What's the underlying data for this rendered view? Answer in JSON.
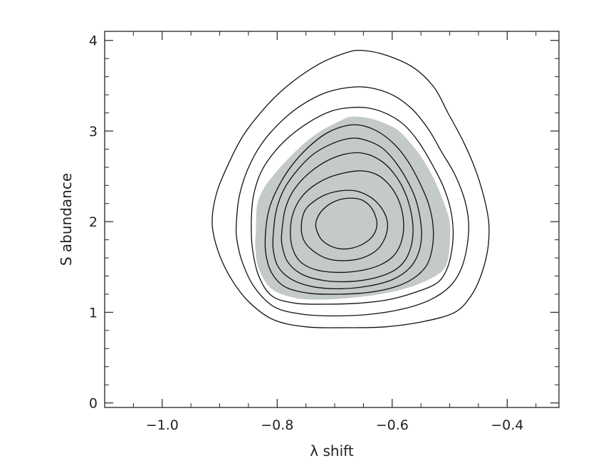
{
  "chart_data": {
    "type": "contour",
    "xlabel": "λ shift",
    "ylabel": "S abundance",
    "xlim": [
      -1.1,
      -0.31
    ],
    "ylim": [
      -0.05,
      4.1
    ],
    "xticks": [
      {
        "value": -1.0,
        "label": "−1.0"
      },
      {
        "value": -0.8,
        "label": "−0.8"
      },
      {
        "value": -0.6,
        "label": "−0.6"
      },
      {
        "value": -0.4,
        "label": "−0.4"
      }
    ],
    "yticks": [
      {
        "value": 0,
        "label": "0"
      },
      {
        "value": 1,
        "label": "1"
      },
      {
        "value": 2,
        "label": "2"
      },
      {
        "value": 3,
        "label": "3"
      },
      {
        "value": 4,
        "label": "4"
      }
    ],
    "x_minor_step": 0.05,
    "y_minor_step": 0.2,
    "grid": false,
    "center": {
      "x": -0.67,
      "y": 2.0
    },
    "shaded_region": {
      "color": "#c4cac8",
      "points": [
        [
          -0.837,
          1.9
        ],
        [
          -0.835,
          2.18
        ],
        [
          -0.824,
          2.36
        ],
        [
          -0.808,
          2.5
        ],
        [
          -0.786,
          2.66
        ],
        [
          -0.754,
          2.86
        ],
        [
          -0.724,
          3.0
        ],
        [
          -0.688,
          3.12
        ],
        [
          -0.67,
          3.16
        ],
        [
          -0.639,
          3.14
        ],
        [
          -0.611,
          3.08
        ],
        [
          -0.588,
          3.0
        ],
        [
          -0.567,
          2.86
        ],
        [
          -0.548,
          2.7
        ],
        [
          -0.528,
          2.48
        ],
        [
          -0.512,
          2.24
        ],
        [
          -0.5,
          2.0
        ],
        [
          -0.5,
          1.74
        ],
        [
          -0.505,
          1.54
        ],
        [
          -0.52,
          1.42
        ],
        [
          -0.559,
          1.3
        ],
        [
          -0.605,
          1.22
        ],
        [
          -0.655,
          1.17
        ],
        [
          -0.72,
          1.14
        ],
        [
          -0.77,
          1.16
        ],
        [
          -0.81,
          1.26
        ],
        [
          -0.832,
          1.48
        ],
        [
          -0.838,
          1.72
        ]
      ]
    },
    "contours": [
      {
        "points": [
          [
            -0.913,
            1.98
          ],
          [
            -0.906,
            2.3
          ],
          [
            -0.886,
            2.62
          ],
          [
            -0.858,
            2.96
          ],
          [
            -0.818,
            3.28
          ],
          [
            -0.778,
            3.52
          ],
          [
            -0.727,
            3.74
          ],
          [
            -0.682,
            3.86
          ],
          [
            -0.654,
            3.89
          ],
          [
            -0.612,
            3.84
          ],
          [
            -0.563,
            3.7
          ],
          [
            -0.527,
            3.48
          ],
          [
            -0.503,
            3.2
          ],
          [
            -0.476,
            2.88
          ],
          [
            -0.455,
            2.57
          ],
          [
            -0.44,
            2.26
          ],
          [
            -0.432,
            1.98
          ],
          [
            -0.434,
            1.69
          ],
          [
            -0.446,
            1.4
          ],
          [
            -0.463,
            1.18
          ],
          [
            -0.491,
            1.0
          ],
          [
            -0.544,
            0.9
          ],
          [
            -0.612,
            0.84
          ],
          [
            -0.682,
            0.83
          ],
          [
            -0.75,
            0.84
          ],
          [
            -0.807,
            0.92
          ],
          [
            -0.85,
            1.12
          ],
          [
            -0.881,
            1.38
          ],
          [
            -0.903,
            1.68
          ]
        ]
      },
      {
        "points": [
          [
            -0.871,
            1.98
          ],
          [
            -0.866,
            2.28
          ],
          [
            -0.851,
            2.58
          ],
          [
            -0.827,
            2.86
          ],
          [
            -0.794,
            3.1
          ],
          [
            -0.759,
            3.28
          ],
          [
            -0.717,
            3.42
          ],
          [
            -0.676,
            3.48
          ],
          [
            -0.641,
            3.48
          ],
          [
            -0.6,
            3.4
          ],
          [
            -0.565,
            3.24
          ],
          [
            -0.537,
            3.02
          ],
          [
            -0.515,
            2.78
          ],
          [
            -0.491,
            2.52
          ],
          [
            -0.474,
            2.24
          ],
          [
            -0.467,
            1.98
          ],
          [
            -0.47,
            1.72
          ],
          [
            -0.48,
            1.48
          ],
          [
            -0.499,
            1.29
          ],
          [
            -0.533,
            1.14
          ],
          [
            -0.579,
            1.04
          ],
          [
            -0.636,
            0.98
          ],
          [
            -0.698,
            0.96
          ],
          [
            -0.757,
            0.98
          ],
          [
            -0.805,
            1.06
          ],
          [
            -0.84,
            1.28
          ],
          [
            -0.861,
            1.56
          ],
          [
            -0.87,
            1.8
          ]
        ]
      },
      {
        "points": [
          [
            -0.845,
            1.98
          ],
          [
            -0.842,
            2.26
          ],
          [
            -0.83,
            2.52
          ],
          [
            -0.811,
            2.72
          ],
          [
            -0.782,
            2.92
          ],
          [
            -0.744,
            3.1
          ],
          [
            -0.706,
            3.22
          ],
          [
            -0.67,
            3.26
          ],
          [
            -0.638,
            3.25
          ],
          [
            -0.606,
            3.18
          ],
          [
            -0.578,
            3.06
          ],
          [
            -0.554,
            2.88
          ],
          [
            -0.533,
            2.66
          ],
          [
            -0.512,
            2.4
          ],
          [
            -0.499,
            2.15
          ],
          [
            -0.494,
            1.9
          ],
          [
            -0.497,
            1.66
          ],
          [
            -0.506,
            1.46
          ],
          [
            -0.523,
            1.32
          ],
          [
            -0.56,
            1.22
          ],
          [
            -0.606,
            1.14
          ],
          [
            -0.659,
            1.1
          ],
          [
            -0.717,
            1.09
          ],
          [
            -0.768,
            1.1
          ],
          [
            -0.809,
            1.18
          ],
          [
            -0.832,
            1.4
          ],
          [
            -0.843,
            1.7
          ]
        ]
      },
      {
        "points": [
          [
            -0.82,
            1.9
          ],
          [
            -0.814,
            2.14
          ],
          [
            -0.8,
            2.36
          ],
          [
            -0.777,
            2.6
          ],
          [
            -0.746,
            2.82
          ],
          [
            -0.713,
            2.98
          ],
          [
            -0.679,
            3.06
          ],
          [
            -0.652,
            3.06
          ],
          [
            -0.621,
            2.98
          ],
          [
            -0.594,
            2.84
          ],
          [
            -0.572,
            2.66
          ],
          [
            -0.553,
            2.44
          ],
          [
            -0.537,
            2.2
          ],
          [
            -0.529,
            1.96
          ],
          [
            -0.53,
            1.72
          ],
          [
            -0.54,
            1.52
          ],
          [
            -0.562,
            1.38
          ],
          [
            -0.595,
            1.28
          ],
          [
            -0.64,
            1.22
          ],
          [
            -0.693,
            1.2
          ],
          [
            -0.744,
            1.21
          ],
          [
            -0.786,
            1.28
          ],
          [
            -0.81,
            1.44
          ],
          [
            -0.82,
            1.66
          ]
        ]
      },
      {
        "points": [
          [
            -0.806,
            1.92
          ],
          [
            -0.801,
            2.14
          ],
          [
            -0.788,
            2.36
          ],
          [
            -0.766,
            2.56
          ],
          [
            -0.738,
            2.74
          ],
          [
            -0.705,
            2.86
          ],
          [
            -0.672,
            2.92
          ],
          [
            -0.646,
            2.9
          ],
          [
            -0.619,
            2.82
          ],
          [
            -0.597,
            2.68
          ],
          [
            -0.578,
            2.5
          ],
          [
            -0.561,
            2.28
          ],
          [
            -0.552,
            2.06
          ],
          [
            -0.549,
            1.84
          ],
          [
            -0.555,
            1.64
          ],
          [
            -0.571,
            1.48
          ],
          [
            -0.6,
            1.36
          ],
          [
            -0.641,
            1.29
          ],
          [
            -0.689,
            1.26
          ],
          [
            -0.736,
            1.28
          ],
          [
            -0.774,
            1.36
          ],
          [
            -0.798,
            1.5
          ],
          [
            -0.807,
            1.7
          ]
        ]
      },
      {
        "points": [
          [
            -0.791,
            1.94
          ],
          [
            -0.786,
            2.14
          ],
          [
            -0.774,
            2.32
          ],
          [
            -0.754,
            2.48
          ],
          [
            -0.727,
            2.62
          ],
          [
            -0.696,
            2.72
          ],
          [
            -0.666,
            2.76
          ],
          [
            -0.641,
            2.74
          ],
          [
            -0.617,
            2.66
          ],
          [
            -0.598,
            2.54
          ],
          [
            -0.582,
            2.38
          ],
          [
            -0.57,
            2.18
          ],
          [
            -0.564,
            1.96
          ],
          [
            -0.566,
            1.76
          ],
          [
            -0.577,
            1.58
          ],
          [
            -0.597,
            1.46
          ],
          [
            -0.63,
            1.38
          ],
          [
            -0.672,
            1.34
          ],
          [
            -0.718,
            1.35
          ],
          [
            -0.757,
            1.42
          ],
          [
            -0.782,
            1.56
          ],
          [
            -0.792,
            1.76
          ]
        ]
      },
      {
        "points": [
          [
            -0.777,
            1.92
          ],
          [
            -0.772,
            2.1
          ],
          [
            -0.759,
            2.26
          ],
          [
            -0.74,
            2.38
          ],
          [
            -0.713,
            2.48
          ],
          [
            -0.682,
            2.54
          ],
          [
            -0.652,
            2.56
          ],
          [
            -0.627,
            2.52
          ],
          [
            -0.607,
            2.42
          ],
          [
            -0.592,
            2.28
          ],
          [
            -0.583,
            2.12
          ],
          [
            -0.58,
            1.94
          ],
          [
            -0.585,
            1.76
          ],
          [
            -0.598,
            1.62
          ],
          [
            -0.622,
            1.52
          ],
          [
            -0.655,
            1.46
          ],
          [
            -0.694,
            1.44
          ],
          [
            -0.733,
            1.47
          ],
          [
            -0.76,
            1.56
          ],
          [
            -0.774,
            1.72
          ]
        ]
      },
      {
        "points": [
          [
            -0.758,
            1.96
          ],
          [
            -0.752,
            2.12
          ],
          [
            -0.737,
            2.22
          ],
          [
            -0.715,
            2.3
          ],
          [
            -0.69,
            2.34
          ],
          [
            -0.664,
            2.34
          ],
          [
            -0.64,
            2.28
          ],
          [
            -0.622,
            2.18
          ],
          [
            -0.611,
            2.06
          ],
          [
            -0.608,
            1.94
          ],
          [
            -0.614,
            1.8
          ],
          [
            -0.628,
            1.68
          ],
          [
            -0.652,
            1.6
          ],
          [
            -0.682,
            1.57
          ],
          [
            -0.712,
            1.59
          ],
          [
            -0.738,
            1.68
          ],
          [
            -0.754,
            1.8
          ]
        ]
      },
      {
        "points": [
          [
            -0.733,
            1.96
          ],
          [
            -0.727,
            2.08
          ],
          [
            -0.712,
            2.18
          ],
          [
            -0.693,
            2.24
          ],
          [
            -0.672,
            2.26
          ],
          [
            -0.653,
            2.24
          ],
          [
            -0.637,
            2.16
          ],
          [
            -0.628,
            2.04
          ],
          [
            -0.627,
            1.94
          ],
          [
            -0.634,
            1.84
          ],
          [
            -0.649,
            1.76
          ],
          [
            -0.669,
            1.71
          ],
          [
            -0.69,
            1.7
          ],
          [
            -0.71,
            1.74
          ],
          [
            -0.725,
            1.82
          ]
        ]
      }
    ]
  }
}
